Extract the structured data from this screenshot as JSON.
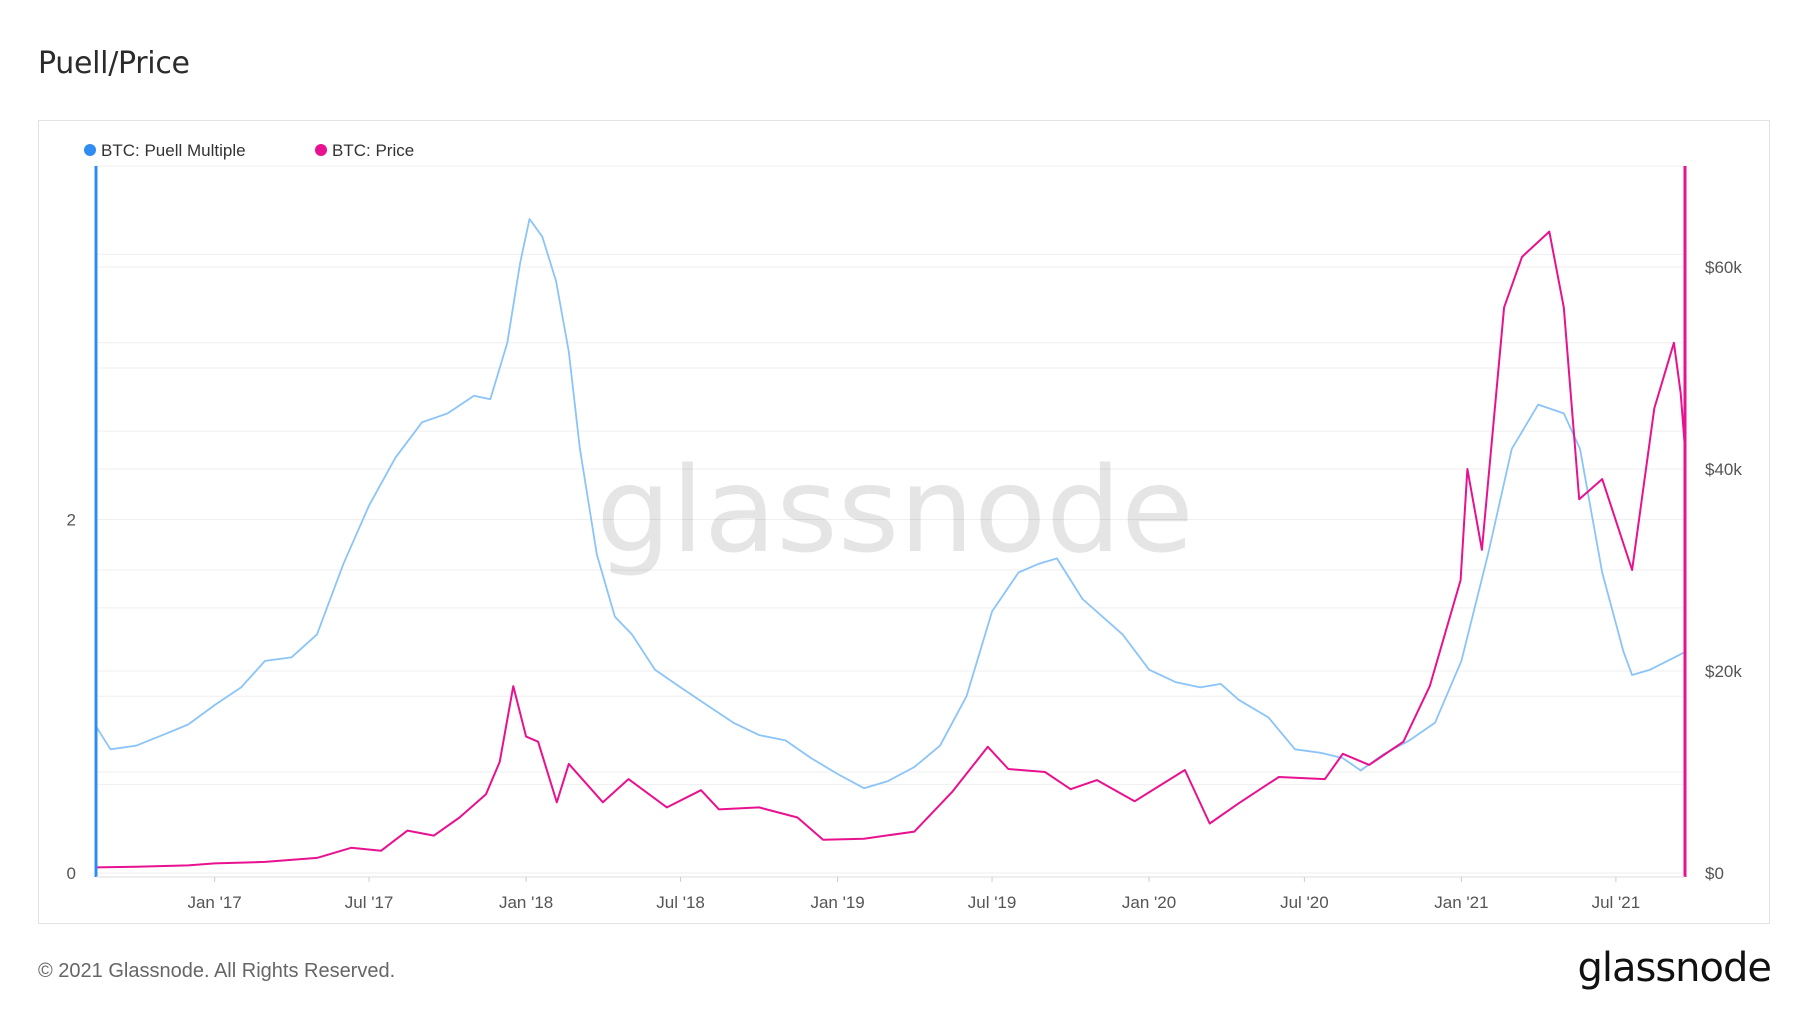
{
  "title": "Puell/Price",
  "footer": {
    "copyright": "© 2021 Glassnode. All Rights Reserved.",
    "brand": "glassnode"
  },
  "watermark": "glassnode",
  "colors": {
    "puell": "#8bc4f8",
    "puell_axis": "#2f8cf0",
    "price": "#e8118f",
    "grid": "#efefef",
    "frame": "#e3e3e3"
  },
  "chart_data": {
    "type": "line",
    "title": "Puell/Price",
    "x_tick_labels": [
      "Jan '17",
      "Jul '17",
      "Jan '18",
      "Jul '18",
      "Jan '19",
      "Jul '19",
      "Jan '20",
      "Jul '20",
      "Jan '21",
      "Jul '21"
    ],
    "x_range": [
      "2016-08-15",
      "2021-09-20"
    ],
    "y_left": {
      "ticks": [
        "0",
        "2"
      ],
      "range": [
        0,
        4.0
      ]
    },
    "y_right": {
      "ticks": [
        "$0",
        "$20k",
        "$40k",
        "$60k"
      ],
      "range": [
        0,
        70000
      ]
    },
    "legend": {
      "position": "top-left"
    },
    "grid": true,
    "series": [
      {
        "name": "BTC: Puell Multiple",
        "axis": "left",
        "color": "#8bc4f8",
        "points": [
          [
            "2016-08-15",
            0.83
          ],
          [
            "2016-09-01",
            0.7
          ],
          [
            "2016-10-01",
            0.72
          ],
          [
            "2016-11-01",
            0.78
          ],
          [
            "2016-12-01",
            0.84
          ],
          [
            "2017-01-01",
            0.95
          ],
          [
            "2017-02-01",
            1.05
          ],
          [
            "2017-03-01",
            1.2
          ],
          [
            "2017-04-01",
            1.22
          ],
          [
            "2017-05-01",
            1.35
          ],
          [
            "2017-06-01",
            1.75
          ],
          [
            "2017-07-01",
            2.08
          ],
          [
            "2017-08-01",
            2.35
          ],
          [
            "2017-09-01",
            2.55
          ],
          [
            "2017-10-01",
            2.6
          ],
          [
            "2017-11-01",
            2.7
          ],
          [
            "2017-11-20",
            2.68
          ],
          [
            "2017-12-10",
            3.0
          ],
          [
            "2017-12-25",
            3.45
          ],
          [
            "2018-01-05",
            3.7
          ],
          [
            "2018-01-20",
            3.6
          ],
          [
            "2018-02-05",
            3.35
          ],
          [
            "2018-02-20",
            2.95
          ],
          [
            "2018-03-05",
            2.4
          ],
          [
            "2018-03-25",
            1.8
          ],
          [
            "2018-04-15",
            1.45
          ],
          [
            "2018-05-05",
            1.35
          ],
          [
            "2018-06-01",
            1.15
          ],
          [
            "2018-07-01",
            1.05
          ],
          [
            "2018-08-01",
            0.95
          ],
          [
            "2018-09-01",
            0.85
          ],
          [
            "2018-10-01",
            0.78
          ],
          [
            "2018-11-01",
            0.75
          ],
          [
            "2018-12-01",
            0.65
          ],
          [
            "2019-01-01",
            0.56
          ],
          [
            "2019-02-01",
            0.48
          ],
          [
            "2019-03-01",
            0.52
          ],
          [
            "2019-04-01",
            0.6
          ],
          [
            "2019-05-01",
            0.72
          ],
          [
            "2019-06-01",
            1.0
          ],
          [
            "2019-07-01",
            1.48
          ],
          [
            "2019-08-01",
            1.7
          ],
          [
            "2019-08-25",
            1.75
          ],
          [
            "2019-09-15",
            1.78
          ],
          [
            "2019-10-15",
            1.55
          ],
          [
            "2019-12-01",
            1.35
          ],
          [
            "2020-01-01",
            1.15
          ],
          [
            "2020-02-01",
            1.08
          ],
          [
            "2020-03-01",
            1.05
          ],
          [
            "2020-03-25",
            1.07
          ],
          [
            "2020-04-15",
            0.98
          ],
          [
            "2020-05-20",
            0.88
          ],
          [
            "2020-06-20",
            0.7
          ],
          [
            "2020-07-20",
            0.68
          ],
          [
            "2020-08-15",
            0.65
          ],
          [
            "2020-09-05",
            0.58
          ],
          [
            "2020-10-01",
            0.67
          ],
          [
            "2020-11-01",
            0.75
          ],
          [
            "2020-12-01",
            0.85
          ],
          [
            "2021-01-01",
            1.2
          ],
          [
            "2021-02-01",
            1.8
          ],
          [
            "2021-03-01",
            2.4
          ],
          [
            "2021-04-01",
            2.65
          ],
          [
            "2021-05-01",
            2.6
          ],
          [
            "2021-05-20",
            2.4
          ],
          [
            "2021-06-15",
            1.7
          ],
          [
            "2021-07-10",
            1.25
          ],
          [
            "2021-07-20",
            1.12
          ],
          [
            "2021-08-10",
            1.15
          ],
          [
            "2021-09-20",
            1.25
          ]
        ]
      },
      {
        "name": "BTC: Price",
        "axis": "right",
        "color": "#e8118f",
        "points": [
          [
            "2016-08-15",
            550
          ],
          [
            "2016-10-01",
            610
          ],
          [
            "2016-12-01",
            750
          ],
          [
            "2017-01-01",
            950
          ],
          [
            "2017-03-01",
            1100
          ],
          [
            "2017-05-01",
            1500
          ],
          [
            "2017-06-10",
            2500
          ],
          [
            "2017-07-15",
            2200
          ],
          [
            "2017-08-15",
            4200
          ],
          [
            "2017-09-15",
            3700
          ],
          [
            "2017-10-15",
            5500
          ],
          [
            "2017-11-15",
            7800
          ],
          [
            "2017-12-01",
            11000
          ],
          [
            "2017-12-17",
            18500
          ],
          [
            "2018-01-01",
            13500
          ],
          [
            "2018-01-15",
            13000
          ],
          [
            "2018-02-06",
            7000
          ],
          [
            "2018-02-20",
            10800
          ],
          [
            "2018-04-01",
            7000
          ],
          [
            "2018-05-01",
            9300
          ],
          [
            "2018-06-15",
            6500
          ],
          [
            "2018-07-25",
            8200
          ],
          [
            "2018-08-15",
            6300
          ],
          [
            "2018-10-01",
            6500
          ],
          [
            "2018-11-15",
            5500
          ],
          [
            "2018-12-15",
            3300
          ],
          [
            "2019-02-01",
            3400
          ],
          [
            "2019-04-01",
            4100
          ],
          [
            "2019-05-15",
            8000
          ],
          [
            "2019-06-26",
            12500
          ],
          [
            "2019-07-20",
            10300
          ],
          [
            "2019-09-01",
            10000
          ],
          [
            "2019-10-01",
            8300
          ],
          [
            "2019-11-01",
            9200
          ],
          [
            "2019-12-15",
            7100
          ],
          [
            "2020-02-12",
            10200
          ],
          [
            "2020-03-12",
            4900
          ],
          [
            "2020-04-15",
            6900
          ],
          [
            "2020-06-01",
            9500
          ],
          [
            "2020-07-25",
            9300
          ],
          [
            "2020-08-15",
            11800
          ],
          [
            "2020-09-15",
            10700
          ],
          [
            "2020-10-25",
            13000
          ],
          [
            "2020-11-25",
            18500
          ],
          [
            "2020-12-31",
            29000
          ],
          [
            "2021-01-08",
            40000
          ],
          [
            "2021-01-25",
            32000
          ],
          [
            "2021-02-20",
            56000
          ],
          [
            "2021-03-13",
            61000
          ],
          [
            "2021-04-14",
            63500
          ],
          [
            "2021-05-01",
            56000
          ],
          [
            "2021-05-19",
            37000
          ],
          [
            "2021-06-15",
            39000
          ],
          [
            "2021-07-20",
            30000
          ],
          [
            "2021-08-15",
            46000
          ],
          [
            "2021-09-07",
            52500
          ],
          [
            "2021-09-15",
            47500
          ],
          [
            "2021-09-20",
            42000
          ]
        ]
      }
    ]
  }
}
